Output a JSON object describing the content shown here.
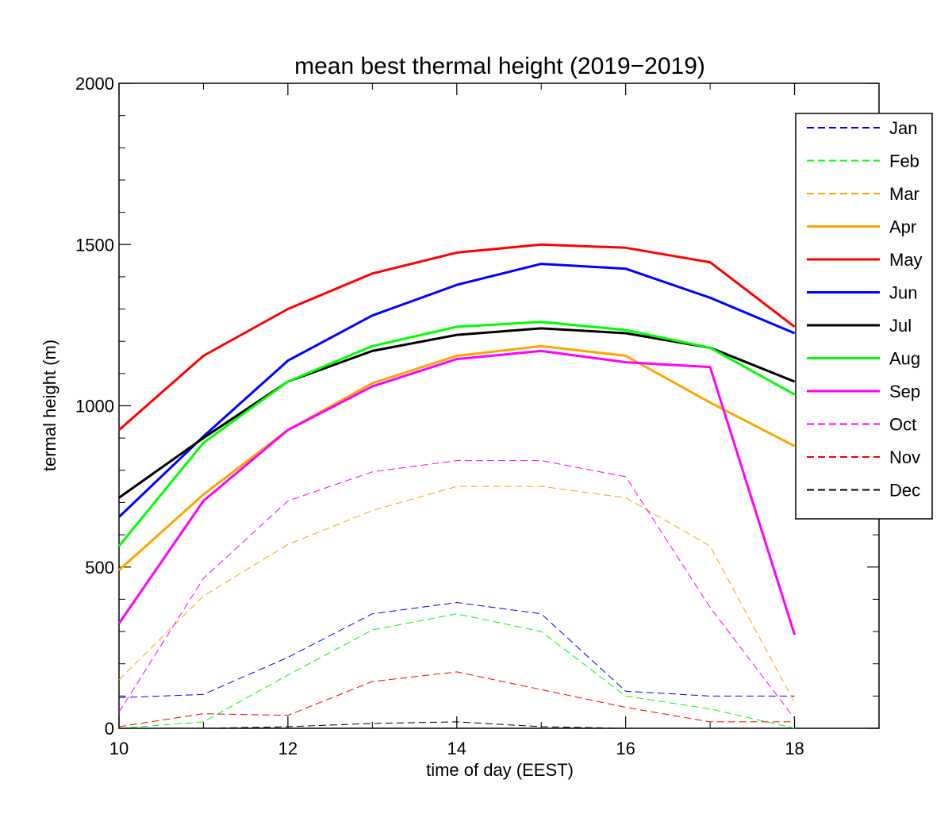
{
  "chart_data": {
    "type": "line",
    "title": "mean best thermal height (2019−2019)",
    "xlabel": "time of day (EEST)",
    "ylabel": "termal height (m)",
    "xlim": [
      10,
      19
    ],
    "ylim": [
      0,
      2000
    ],
    "xticks": [
      10,
      12,
      14,
      16,
      18
    ],
    "xtick_labels": [
      "10",
      "12",
      "14",
      "16",
      "18"
    ],
    "yticks": [
      0,
      500,
      1000,
      1500,
      2000
    ],
    "ytick_labels": [
      "0",
      "500",
      "1000",
      "1500",
      "2000"
    ],
    "grid": false,
    "legend_position": "top-right",
    "x": [
      10,
      11,
      12,
      13,
      14,
      15,
      16,
      17,
      18
    ],
    "series": [
      {
        "name": "Jan",
        "color": "#0000ff",
        "style": "dashed",
        "values": [
          95,
          105,
          220,
          355,
          390,
          355,
          115,
          100,
          100
        ]
      },
      {
        "name": "Feb",
        "color": "#00ff00",
        "style": "dashed",
        "values": [
          0,
          20,
          165,
          305,
          355,
          300,
          100,
          60,
          0
        ]
      },
      {
        "name": "Mar",
        "color": "#ffa500",
        "style": "dashed",
        "values": [
          150,
          410,
          570,
          675,
          750,
          750,
          715,
          565,
          80
        ]
      },
      {
        "name": "Apr",
        "color": "#ffa500",
        "style": "solid",
        "values": [
          490,
          725,
          925,
          1070,
          1155,
          1185,
          1155,
          1010,
          875
        ]
      },
      {
        "name": "May",
        "color": "#ff0000",
        "style": "solid",
        "values": [
          925,
          1155,
          1300,
          1410,
          1475,
          1500,
          1490,
          1445,
          1245
        ]
      },
      {
        "name": "Jun",
        "color": "#0000ff",
        "style": "solid",
        "values": [
          655,
          905,
          1140,
          1280,
          1375,
          1440,
          1425,
          1335,
          1225
        ]
      },
      {
        "name": "Jul",
        "color": "#000000",
        "style": "solid",
        "values": [
          715,
          900,
          1075,
          1170,
          1220,
          1240,
          1225,
          1180,
          1075
        ]
      },
      {
        "name": "Aug",
        "color": "#00ff00",
        "style": "solid",
        "values": [
          565,
          885,
          1075,
          1185,
          1245,
          1260,
          1235,
          1180,
          1035
        ]
      },
      {
        "name": "Sep",
        "color": "#ff00ff",
        "style": "solid",
        "values": [
          325,
          705,
          925,
          1060,
          1145,
          1170,
          1135,
          1120,
          290
        ]
      },
      {
        "name": "Oct",
        "color": "#ff00ff",
        "style": "dashed",
        "values": [
          50,
          465,
          705,
          795,
          830,
          830,
          780,
          375,
          30
        ]
      },
      {
        "name": "Nov",
        "color": "#ff0000",
        "style": "dashed",
        "values": [
          5,
          45,
          40,
          145,
          175,
          120,
          65,
          20,
          20
        ]
      },
      {
        "name": "Dec",
        "color": "#000000",
        "style": "dashed",
        "values": [
          0,
          0,
          5,
          15,
          20,
          5,
          0,
          0,
          0
        ]
      }
    ]
  }
}
